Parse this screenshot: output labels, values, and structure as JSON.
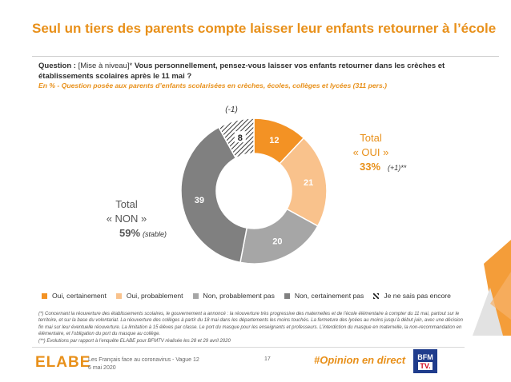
{
  "header": {
    "title": "Seul un tiers des parents compte laisser leur enfants retourner à l’école",
    "question_prefix": "Question : ",
    "question_tag": "[Mise à niveau]* ",
    "question_text": "Vous personnellement, pensez-vous laisser vos enfants retourner dans les crèches et établissements scolaires après le 11 mai ?",
    "base": "En % - Question posée aux parents d’enfants scolarisées en crèches, écoles, collèges et lycées (311 pers.)"
  },
  "chart_data": {
    "type": "pie",
    "categories": [
      "Oui, certainement",
      "Oui, probablement",
      "Non, probablement pas",
      "Non, certainement pas",
      "Je ne sais pas encore"
    ],
    "values": [
      12,
      21,
      20,
      39,
      8
    ],
    "colors": [
      "#f39224",
      "#f9c28c",
      "#a6a6a6",
      "#808080",
      "#ffffff"
    ],
    "donut": true,
    "legend_position": "bottom",
    "annotations": {
      "dk_change": "(-1)",
      "oui_total_label": "Total",
      "oui_total_name": "« OUI »",
      "oui_total_value": "33%",
      "oui_change": "(+1)**",
      "non_total_label": "Total",
      "non_total_name": "« NON »",
      "non_total_value": "59%",
      "non_change": "(stable)"
    }
  },
  "footnotes": [
    "(*) Concernant la réouverture des établissements scolaires, le gouvernement a annoncé : la réouverture très progressive des maternelles et de l’école élémentaire à compter du 11 mai, partout sur le territoire, et sur la base du volontariat. La réouverture des collèges à partir du 18 mai dans les départements les moins touchés. La fermeture des lycées au moins jusqu’à début juin, avec une décision fin mai sur leur éventuelle réouverture. La limitation à 15 élèves par classe. Le port du masque pour les enseignants et professeurs. L’interdiction du masque en maternelle, la non-recommandation en élémentaire, et l’obligation du port du masque au collège.",
    "(**) Evolutions par rapport à l’enquête ELABE pour BFMTV réalisée les 28 et 29 avril 2020"
  ],
  "footer": {
    "logo": "ELABE",
    "survey": "Les Français face au coronavirus - Vague 12",
    "date": "6 mai 2020",
    "page": "17",
    "hashtag": "#Opinion en direct",
    "channel_top": "BFM",
    "channel_bottom": "TV."
  }
}
